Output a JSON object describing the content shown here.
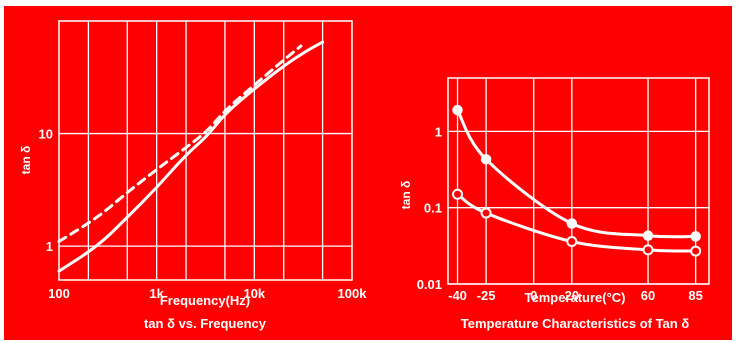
{
  "colors": {
    "background": "#ff0000",
    "ink": "#ffffff"
  },
  "chart_data": [
    {
      "type": "line",
      "title": "tan δ vs. Frequency",
      "xlabel": "Frequency(Hz)",
      "ylabel": "tan δ",
      "x_scale": "log",
      "y_scale": "log",
      "xlim": [
        100,
        100000
      ],
      "ylim": [
        0.5,
        100
      ],
      "grid": true,
      "x_ticks": [
        {
          "value": 100,
          "label": "100"
        },
        {
          "value": 1000,
          "label": "1k"
        },
        {
          "value": 10000,
          "label": "10k"
        },
        {
          "value": 100000,
          "label": "100k"
        }
      ],
      "y_ticks": [
        {
          "value": 1,
          "label": "1"
        },
        {
          "value": 10,
          "label": "10"
        }
      ],
      "series": [
        {
          "style": "solid",
          "x": [
            100,
            250,
            500,
            1000,
            2000,
            3300,
            5000,
            10000,
            20000,
            35000,
            50000
          ],
          "y": [
            0.6,
            1.0,
            1.8,
            3.3,
            6.5,
            9.5,
            15,
            25,
            40,
            55,
            65
          ]
        },
        {
          "style": "dashed",
          "x": [
            100,
            250,
            500,
            1000,
            2000,
            3300,
            5000,
            10000,
            20000,
            30000
          ],
          "y": [
            1.1,
            1.8,
            3.0,
            4.8,
            7.5,
            10.5,
            16,
            27,
            45,
            60
          ]
        }
      ]
    },
    {
      "type": "line",
      "title": "Temperature Characteristics of Tan δ",
      "xlabel": "Temperature(°C)",
      "ylabel": "tan δ",
      "y_scale": "log",
      "xlim": [
        -45,
        92
      ],
      "ylim": [
        0.01,
        5
      ],
      "grid": true,
      "x_ticks": [
        {
          "value": -40,
          "label": "-40"
        },
        {
          "value": -25,
          "label": "-25"
        },
        {
          "value": 0,
          "label": "0"
        },
        {
          "value": 20,
          "label": "20"
        },
        {
          "value": 60,
          "label": "60"
        },
        {
          "value": 85,
          "label": "85"
        }
      ],
      "y_ticks": [
        {
          "value": 0.01,
          "label": "0.01"
        },
        {
          "value": 0.1,
          "label": "0.1"
        },
        {
          "value": 1,
          "label": "1"
        }
      ],
      "series": [
        {
          "marker": "filled",
          "x": [
            -40,
            -25,
            20,
            60,
            85
          ],
          "y": [
            1.9,
            0.43,
            0.062,
            0.043,
            0.042
          ]
        },
        {
          "marker": "open",
          "x": [
            -40,
            -25,
            20,
            60,
            85
          ],
          "y": [
            0.15,
            0.085,
            0.036,
            0.028,
            0.027
          ]
        }
      ]
    }
  ]
}
